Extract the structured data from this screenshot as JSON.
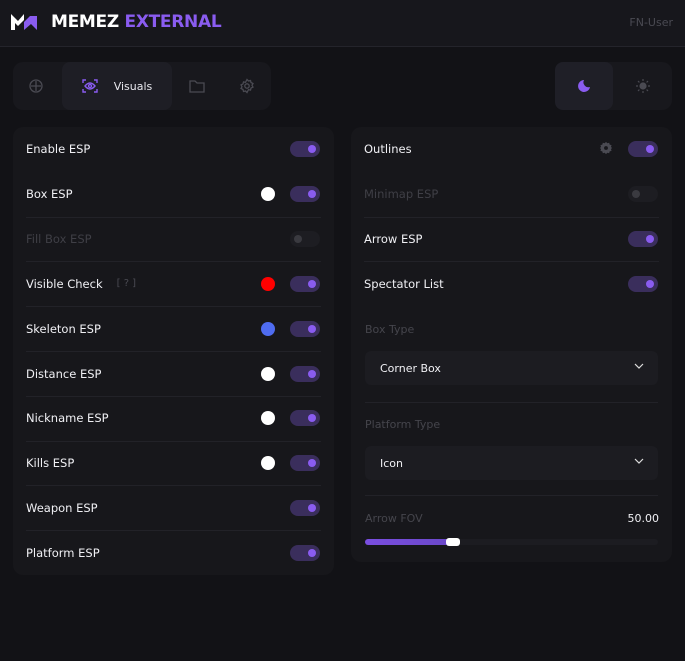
{
  "header": {
    "title_a": "MEMEZ",
    "title_b": "EXTERNAL",
    "user": "FN-User"
  },
  "colors": {
    "accent": "#8a5cf0",
    "background": "#121216",
    "panel": "#17171b"
  },
  "tabs": [
    {
      "icon": "crosshair-icon",
      "label": ""
    },
    {
      "icon": "eye-scan-icon",
      "label": "Visuals",
      "active": true
    },
    {
      "icon": "folder-icon",
      "label": ""
    },
    {
      "icon": "gear-icon",
      "label": ""
    }
  ],
  "theme": [
    {
      "icon": "moon-icon",
      "active": true
    },
    {
      "icon": "sun-icon",
      "active": false
    }
  ],
  "left": [
    {
      "label": "Enable ESP",
      "on": true
    },
    {
      "label": "Box ESP",
      "on": true,
      "color": "#ffffff"
    },
    {
      "label": "Fill Box ESP",
      "on": false,
      "disabled": true
    },
    {
      "label": "Visible Check",
      "hint": "[ ? ]",
      "on": true,
      "color": "#ff0000"
    },
    {
      "label": "Skeleton ESP",
      "on": true,
      "color": "#4f6cf0"
    },
    {
      "label": "Distance ESP",
      "on": true,
      "color": "#ffffff"
    },
    {
      "label": "Nickname ESP",
      "on": true,
      "color": "#ffffff"
    },
    {
      "label": "Kills ESP",
      "on": true,
      "color": "#ffffff"
    },
    {
      "label": "Weapon ESP",
      "on": true
    },
    {
      "label": "Platform ESP",
      "on": true
    }
  ],
  "right": {
    "toggles": [
      {
        "label": "Outlines",
        "on": true,
        "gear": true
      },
      {
        "label": "Minimap ESP",
        "on": false,
        "disabled": true
      },
      {
        "label": "Arrow ESP",
        "on": true
      },
      {
        "label": "Spectator List",
        "on": true
      }
    ],
    "box_type": {
      "label": "Box Type",
      "value": "Corner Box"
    },
    "platform_type": {
      "label": "Platform Type",
      "value": "Icon"
    },
    "arrow_fov": {
      "label": "Arrow FOV",
      "value": "50.00",
      "fill_fraction": 0.3
    }
  }
}
